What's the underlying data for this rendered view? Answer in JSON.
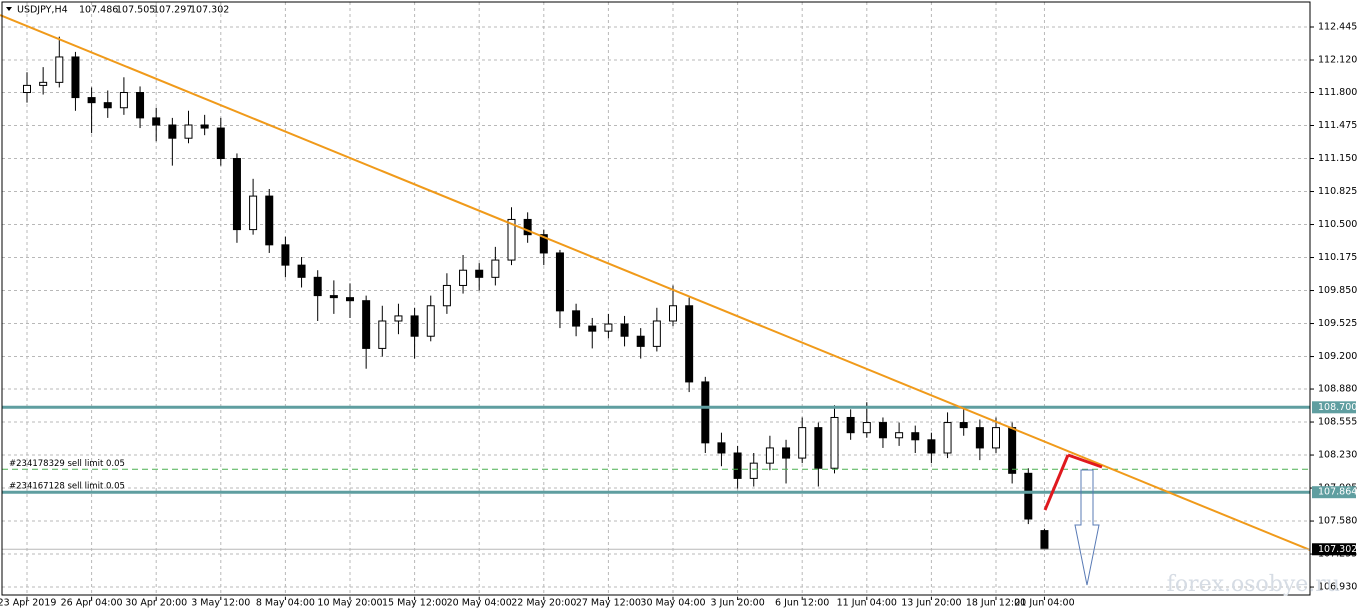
{
  "chart_data": {
    "type": "candlestick",
    "title": "USDJPY,H4",
    "categories": [
      "23 Apr 2019",
      null,
      null,
      null,
      "26 Apr 04:00",
      null,
      null,
      null,
      "30 Apr 20:00",
      null,
      null,
      null,
      "3 May 12:00",
      null,
      null,
      null,
      "8 May 04:00",
      null,
      null,
      null,
      "10 May 20:00",
      null,
      null,
      null,
      "15 May 12:00",
      null,
      null,
      null,
      "20 May 04:00",
      null,
      null,
      null,
      "22 May 20:00",
      null,
      null,
      null,
      "27 May 12:00",
      null,
      null,
      null,
      "30 May 04:00",
      null,
      null,
      null,
      "3 Jun 20:00",
      null,
      null,
      null,
      "6 Jun 12:00",
      null,
      null,
      null,
      "11 Jun 04:00",
      null,
      null,
      null,
      "13 Jun 20:00",
      null,
      null,
      null,
      "18 Jun 12:00",
      null,
      null,
      "21 Jun 04:00"
    ],
    "open": [
      111.8,
      111.87,
      111.9,
      112.15,
      111.75,
      111.7,
      111.65,
      111.8,
      111.55,
      111.48,
      111.35,
      111.48,
      111.45,
      111.15,
      110.45,
      110.78,
      110.3,
      110.1,
      109.98,
      109.8,
      109.78,
      109.75,
      109.28,
      109.55,
      109.6,
      109.4,
      109.7,
      109.9,
      110.05,
      109.98,
      110.15,
      110.55,
      110.4,
      110.22,
      109.65,
      109.5,
      109.45,
      109.52,
      109.4,
      109.3,
      109.55,
      109.7,
      108.95,
      108.35,
      108.25,
      108.0,
      108.15,
      108.3,
      108.2,
      108.5,
      108.1,
      108.6,
      108.45,
      108.55,
      108.4,
      108.45,
      108.38,
      108.25,
      108.55,
      108.5,
      108.3,
      108.5,
      108.05,
      107.486
    ],
    "high": [
      112.0,
      112.05,
      112.35,
      112.2,
      111.85,
      111.82,
      111.95,
      111.86,
      111.65,
      111.55,
      111.62,
      111.58,
      111.55,
      111.2,
      110.95,
      110.85,
      110.38,
      110.18,
      110.05,
      109.95,
      109.92,
      109.8,
      109.7,
      109.72,
      109.68,
      109.8,
      110.02,
      110.2,
      110.12,
      110.28,
      110.67,
      110.62,
      110.45,
      110.25,
      109.72,
      109.58,
      109.62,
      109.6,
      109.48,
      109.68,
      109.9,
      109.78,
      109.0,
      108.45,
      108.32,
      108.25,
      108.42,
      108.38,
      108.6,
      108.55,
      108.72,
      108.68,
      108.75,
      108.6,
      108.55,
      108.52,
      108.45,
      108.65,
      108.68,
      108.58,
      108.6,
      108.55,
      108.1,
      107.505
    ],
    "low": [
      111.7,
      111.78,
      111.85,
      111.62,
      111.4,
      111.55,
      111.58,
      111.45,
      111.32,
      111.08,
      111.3,
      111.38,
      111.08,
      110.32,
      110.4,
      110.22,
      109.98,
      109.88,
      109.55,
      109.62,
      109.58,
      109.08,
      109.2,
      109.42,
      109.18,
      109.35,
      109.62,
      109.82,
      109.85,
      109.9,
      110.1,
      110.32,
      110.1,
      109.48,
      109.4,
      109.28,
      109.38,
      109.3,
      109.18,
      109.25,
      109.5,
      108.85,
      108.25,
      108.12,
      107.9,
      107.92,
      108.08,
      107.95,
      108.15,
      107.92,
      108.05,
      108.38,
      108.4,
      108.3,
      108.32,
      108.25,
      108.15,
      108.2,
      108.42,
      108.18,
      108.25,
      107.95,
      107.55,
      107.297
    ],
    "close": [
      111.87,
      111.9,
      112.15,
      111.75,
      111.7,
      111.65,
      111.8,
      111.55,
      111.48,
      111.35,
      111.48,
      111.45,
      111.15,
      110.45,
      110.78,
      110.3,
      110.1,
      109.98,
      109.8,
      109.78,
      109.75,
      109.28,
      109.55,
      109.6,
      109.4,
      109.7,
      109.9,
      110.05,
      109.98,
      110.15,
      110.55,
      110.4,
      110.22,
      109.65,
      109.5,
      109.45,
      109.52,
      109.4,
      109.3,
      109.55,
      109.7,
      108.95,
      108.35,
      108.25,
      108.0,
      108.15,
      108.3,
      108.2,
      108.5,
      108.1,
      108.6,
      108.45,
      108.55,
      108.4,
      108.45,
      108.38,
      108.25,
      108.55,
      108.5,
      108.3,
      108.5,
      108.05,
      107.6,
      107.302
    ],
    "ylim": [
      106.832,
      112.711
    ],
    "yticks": [
      {
        "value": 112.445,
        "label": "112.445"
      },
      {
        "value": 112.12,
        "label": "112.120"
      },
      {
        "value": 111.8,
        "label": "111.800"
      },
      {
        "value": 111.475,
        "label": "111.475"
      },
      {
        "value": 111.15,
        "label": "111.150"
      },
      {
        "value": 110.825,
        "label": "110.825"
      },
      {
        "value": 110.5,
        "label": "110.500"
      },
      {
        "value": 110.175,
        "label": "110.175"
      },
      {
        "value": 109.85,
        "label": "109.850"
      },
      {
        "value": 109.525,
        "label": "109.525"
      },
      {
        "value": 109.2,
        "label": "109.200"
      },
      {
        "value": 108.88,
        "label": "108.880"
      },
      {
        "value": 108.555,
        "label": "108.555"
      },
      {
        "value": 108.23,
        "label": "108.230"
      },
      {
        "value": 107.905,
        "label": "107.905"
      },
      {
        "value": 107.58,
        "label": "107.580"
      },
      {
        "value": 107.255,
        "label": "107.255"
      },
      {
        "value": 106.93,
        "label": "106.930"
      }
    ],
    "grid": true,
    "levels": [
      {
        "value": 108.7,
        "value_label": "108.700",
        "color": "#5f9ea0"
      },
      {
        "value": 107.864,
        "value_label": "107.864",
        "color": "#5f9ea0"
      }
    ],
    "orders": [
      {
        "label": "#234178329 sell limit 0.05",
        "value": 108.09,
        "color": "#4caf50"
      },
      {
        "label": "#234167128 sell limit 0.05",
        "value": 107.864,
        "color": "#4caf50"
      }
    ],
    "current_price": {
      "value": 107.302,
      "label": "107.302"
    },
    "trendline": {
      "x": [
        -1.67,
        79.44
      ],
      "y": [
        112.563,
        107.295
      ],
      "color": "#f09a1a"
    },
    "watermark": "forex.osobye.ru"
  }
}
